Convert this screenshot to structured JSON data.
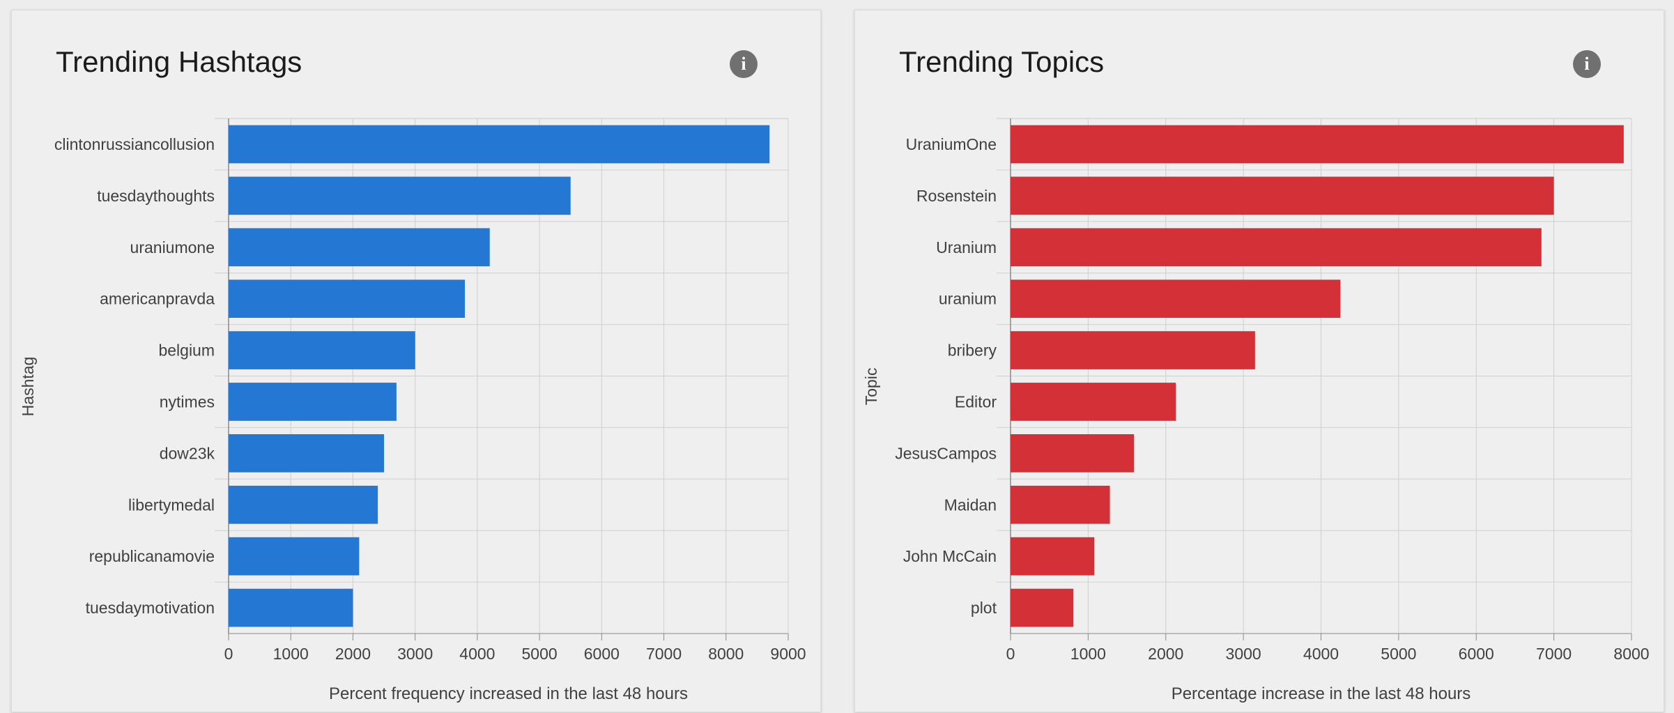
{
  "info_icon_glyph": "i",
  "chart_data": [
    {
      "type": "bar",
      "orientation": "horizontal",
      "title": "Trending Hashtags",
      "xlabel": "Percent frequency increased in the last 48 hours",
      "ylabel": "Hashtag",
      "categories": [
        "clintonrussiancollusion",
        "tuesdaythoughts",
        "uraniumone",
        "americanpravda",
        "belgium",
        "nytimes",
        "dow23k",
        "libertymedal",
        "republicanamovie",
        "tuesdaymotivation"
      ],
      "values": [
        8700,
        5500,
        4200,
        3800,
        3000,
        2700,
        2500,
        2400,
        2100,
        2000
      ],
      "xlim": [
        0,
        9000
      ],
      "ticks": [
        "0",
        "1000",
        "2000",
        "3000",
        "4000",
        "5000",
        "6000",
        "7000",
        "8000",
        "9000"
      ],
      "grid": true,
      "color": "#2478d4",
      "info_icon": "info-icon"
    },
    {
      "type": "bar",
      "orientation": "horizontal",
      "title": "Trending Topics",
      "xlabel": "Percentage increase in the last 48 hours",
      "ylabel": "Topic",
      "categories": [
        "UraniumOne",
        "Rosenstein",
        "Uranium",
        "uranium",
        "bribery",
        "Editor",
        "JesusCampos",
        "Maidan",
        "John McCain",
        "plot"
      ],
      "values": [
        7900,
        7000,
        6840,
        4250,
        3150,
        2130,
        1590,
        1280,
        1080,
        810
      ],
      "xlim": [
        0,
        8000
      ],
      "ticks": [
        "0",
        "1000",
        "2000",
        "3000",
        "4000",
        "5000",
        "6000",
        "7000",
        "8000"
      ],
      "grid": true,
      "color": "#d33038",
      "info_icon": "info-icon"
    }
  ]
}
